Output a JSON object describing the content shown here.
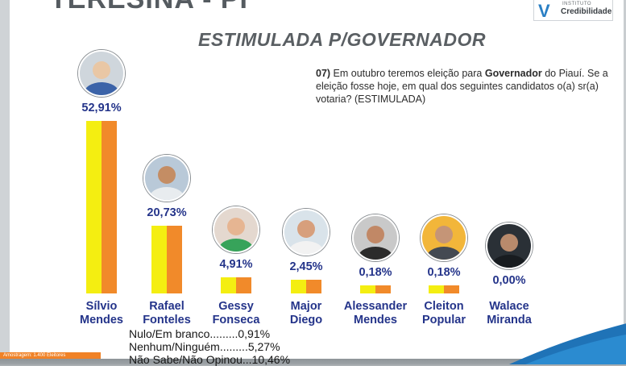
{
  "header": {
    "city": "TERESINA - PI",
    "subtitle": "ESTIMULADA P/GOVERNADOR"
  },
  "logo": {
    "small": "INSTITUTO",
    "name": "Credibilidade"
  },
  "question": {
    "number": "07)",
    "before": " Em outubro teremos eleição para ",
    "bold": "Governador",
    "after": " do Piauí. Se a eleição fosse hoje, em qual dos seguintes candidatos o(a) sr(a) votaria? (ESTIMULADA)"
  },
  "others": {
    "nulo": "Nulo/Em branco.........0,91%",
    "nenhum": "Nenhum/Ninguém.........5,27%",
    "nao_sabe": "Não Sabe/Não Opinou...10,46%"
  },
  "sample_note": "Amostragem: 1.400 Eleitores",
  "chart_data": {
    "type": "bar",
    "title": "ESTIMULADA P/GOVERNADOR",
    "categories": [
      "Sílvio Mendes",
      "Rafael Fonteles",
      "Gessy Fonseca",
      "Major Diego",
      "Alessander Mendes",
      "Cleiton Popular",
      "Walace Miranda"
    ],
    "name_lines": [
      [
        "Sílvio",
        "Mendes"
      ],
      [
        "Rafael",
        "Fonteles"
      ],
      [
        "Gessy",
        "Fonseca"
      ],
      [
        "Major",
        "Diego"
      ],
      [
        "Alessander",
        "Mendes"
      ],
      [
        "Cleiton",
        "Popular"
      ],
      [
        "Walace",
        "Miranda"
      ]
    ],
    "values": [
      52.91,
      20.73,
      4.91,
      2.45,
      0.18,
      0.18,
      0.0
    ],
    "labels": [
      "52,91%",
      "20,73%",
      "4,91%",
      "2,45%",
      "0,18%",
      "0,18%",
      "0,00%"
    ],
    "colors": {
      "bar_left": "#f4ee11",
      "bar_right": "#f18a2a",
      "text": "#24348a"
    },
    "photo_icons": [
      "candidate-photo-silvio-mendes",
      "candidate-photo-rafael-fonteles",
      "candidate-photo-gessy-fonseca",
      "candidate-photo-major-diego",
      "candidate-photo-alessander-mendes",
      "candidate-photo-cleiton-popular",
      "candidate-photo-walace-miranda"
    ],
    "ylim": [
      0,
      60
    ],
    "grid": false,
    "legend": "none"
  }
}
